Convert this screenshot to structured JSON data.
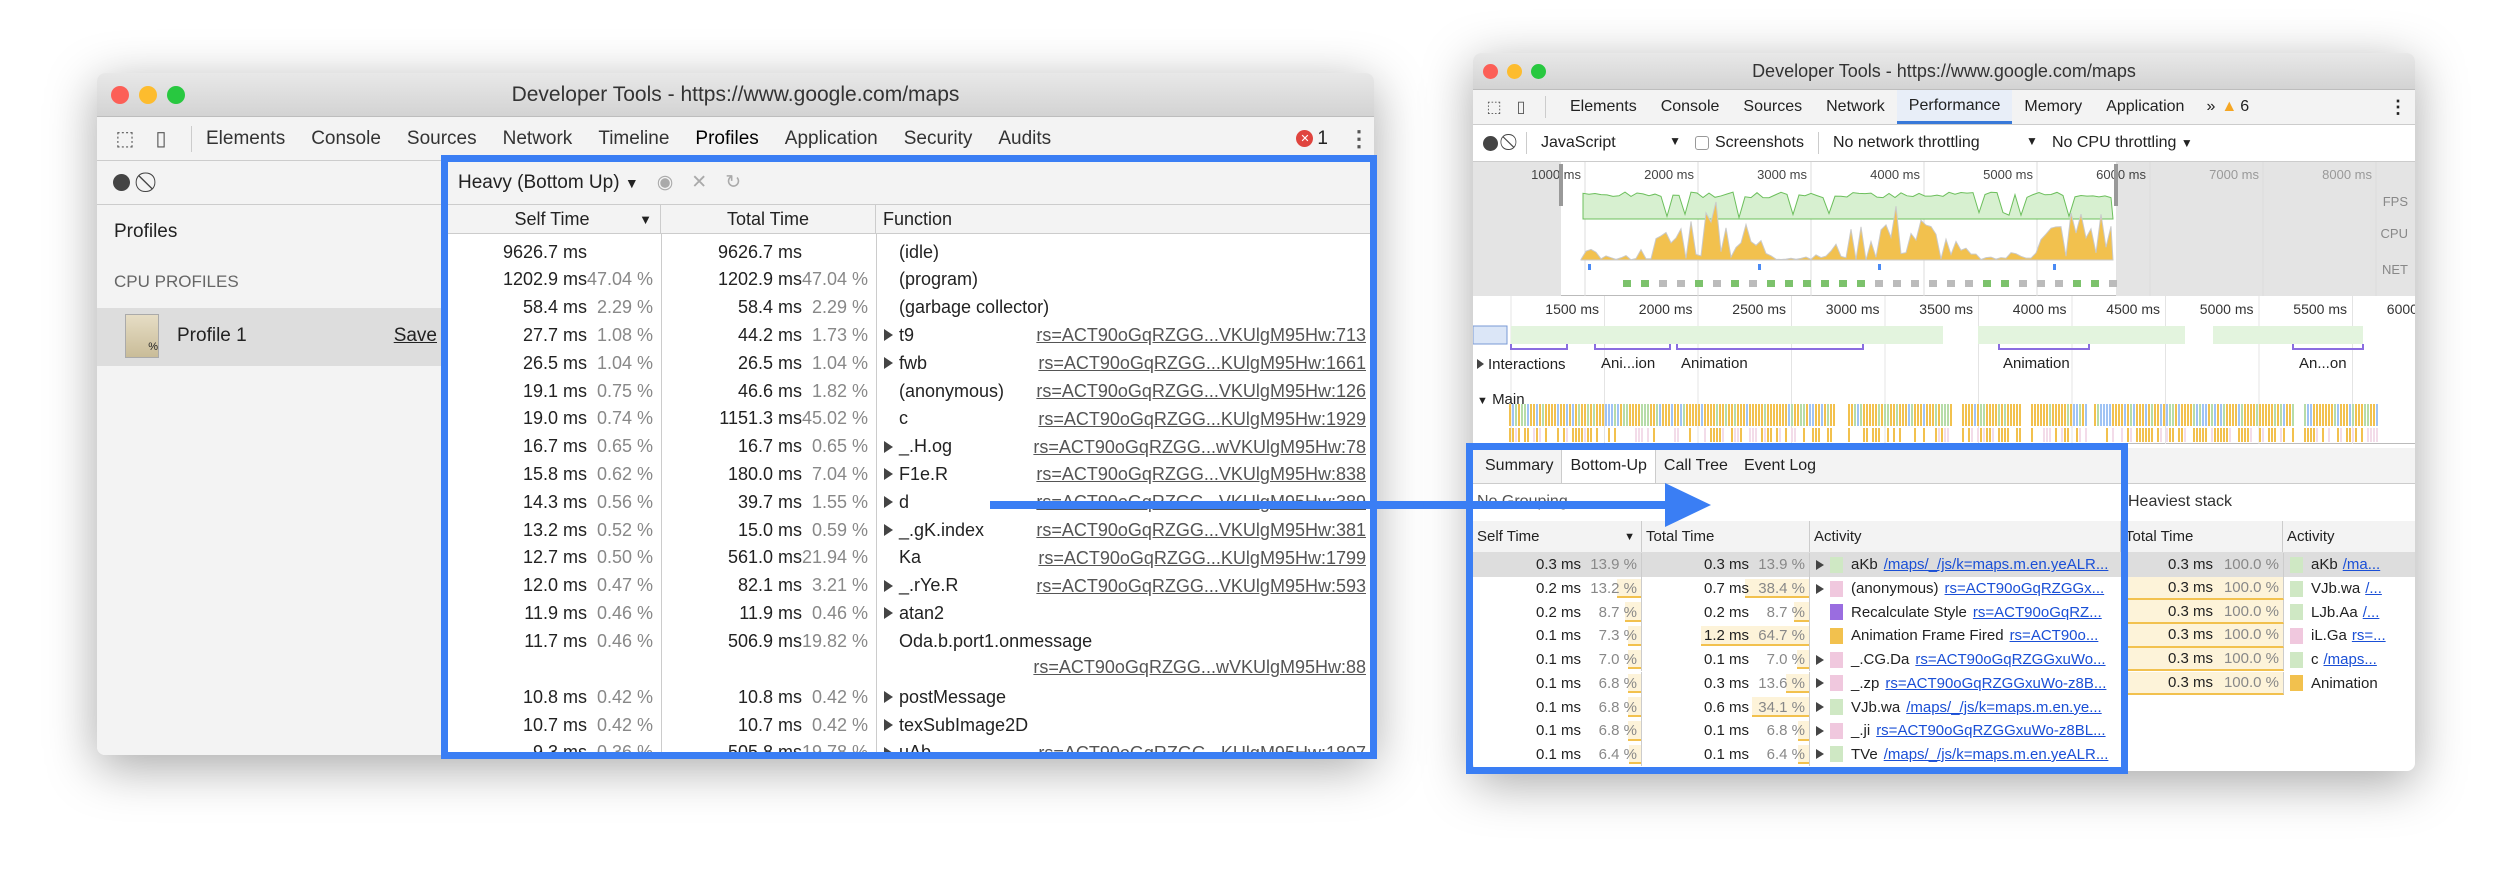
{
  "left_window": {
    "title": "Developer Tools - https://www.google.com/maps",
    "tabs": [
      "Elements",
      "Console",
      "Sources",
      "Network",
      "Timeline",
      "Profiles",
      "Application",
      "Security",
      "Audits"
    ],
    "active_tab": "Profiles",
    "error_count": "1",
    "sidebar": {
      "profiles_label": "Profiles",
      "section_label": "CPU PROFILES",
      "profile_name": "Profile 1",
      "save_label": "Save"
    },
    "view_select": "Heavy (Bottom Up)",
    "columns": {
      "self": "Self Time",
      "total": "Total Time",
      "function": "Function"
    },
    "rows": [
      [
        "9626.7 ms",
        "",
        "9626.7 ms",
        "",
        false,
        "(idle)",
        ""
      ],
      [
        "1202.9 ms",
        "47.04 %",
        "1202.9 ms",
        "47.04 %",
        false,
        "(program)",
        ""
      ],
      [
        "58.4 ms",
        "2.29 %",
        "58.4 ms",
        "2.29 %",
        false,
        "(garbage collector)",
        ""
      ],
      [
        "27.7 ms",
        "1.08 %",
        "44.2 ms",
        "1.73 %",
        true,
        "t9",
        "rs=ACT90oGqRZGG...VKUlgM95Hw:713"
      ],
      [
        "26.5 ms",
        "1.04 %",
        "26.5 ms",
        "1.04 %",
        true,
        "fwb",
        "rs=ACT90oGqRZGG...KUlgM95Hw:1661"
      ],
      [
        "19.1 ms",
        "0.75 %",
        "46.6 ms",
        "1.82 %",
        false,
        "(anonymous)",
        "rs=ACT90oGqRZGG...VKUlgM95Hw:126"
      ],
      [
        "19.0 ms",
        "0.74 %",
        "1151.3 ms",
        "45.02 %",
        false,
        "c",
        "rs=ACT90oGqRZGG...KUlgM95Hw:1929"
      ],
      [
        "16.7 ms",
        "0.65 %",
        "16.7 ms",
        "0.65 %",
        true,
        "_.H.og",
        "rs=ACT90oGqRZGG...wVKUlgM95Hw:78"
      ],
      [
        "15.8 ms",
        "0.62 %",
        "180.0 ms",
        "7.04 %",
        true,
        "F1e.R",
        "rs=ACT90oGqRZGG...VKUlgM95Hw:838"
      ],
      [
        "14.3 ms",
        "0.56 %",
        "39.7 ms",
        "1.55 %",
        true,
        "d",
        "rs=ACT90oGqRZGG...VKUlgM95Hw:389"
      ],
      [
        "13.2 ms",
        "0.52 %",
        "15.0 ms",
        "0.59 %",
        true,
        "_.gK.index",
        "rs=ACT90oGqRZGG...VKUlgM95Hw:381"
      ],
      [
        "12.7 ms",
        "0.50 %",
        "561.0 ms",
        "21.94 %",
        false,
        "Ka",
        "rs=ACT90oGqRZGG...KUlgM95Hw:1799"
      ],
      [
        "12.0 ms",
        "0.47 %",
        "82.1 ms",
        "3.21 %",
        true,
        "_.rYe.R",
        "rs=ACT90oGqRZGG...VKUlgM95Hw:593"
      ],
      [
        "11.9 ms",
        "0.46 %",
        "11.9 ms",
        "0.46 %",
        true,
        "atan2",
        ""
      ],
      [
        "11.7 ms",
        "0.46 %",
        "506.9 ms",
        "19.82 %",
        false,
        "Oda.b.port1.onmessage",
        "rs=ACT90oGqRZGG...wVKUlgM95Hw:88"
      ],
      [
        "10.8 ms",
        "0.42 %",
        "10.8 ms",
        "0.42 %",
        true,
        "postMessage",
        ""
      ],
      [
        "10.7 ms",
        "0.42 %",
        "10.7 ms",
        "0.42 %",
        true,
        "texSubImage2D",
        ""
      ],
      [
        "9.3 ms",
        "0.36 %",
        "505.8 ms",
        "19.78 %",
        true,
        "uAb",
        "rs=ACT90oGqRZGG...KUlgM95Hw:1807"
      ]
    ]
  },
  "right_window": {
    "title": "Developer Tools - https://www.google.com/maps",
    "tabs": [
      "Elements",
      "Console",
      "Sources",
      "Network",
      "Performance",
      "Memory",
      "Application"
    ],
    "active_tab": "Performance",
    "more_tabs": "»",
    "warning_count": "6",
    "toolbar": {
      "category": "JavaScript",
      "screenshots_label": "Screenshots",
      "network": "No network throttling",
      "cpu": "No CPU throttling"
    },
    "overview_ticks": [
      "1000 ms",
      "2000 ms",
      "3000 ms",
      "4000 ms",
      "5000 ms",
      "6000 ms",
      "7000 ms",
      "8000 ms"
    ],
    "track_labels": [
      "FPS",
      "CPU",
      "NET"
    ],
    "detail_ticks": [
      "1500 ms",
      "2000 ms",
      "2500 ms",
      "3000 ms",
      "3500 ms",
      "4000 ms",
      "4500 ms",
      "5000 ms",
      "5500 ms",
      "6000 ms"
    ],
    "interactions_label": "Interactions",
    "interaction_labels": [
      "Ani...ion",
      "Animation",
      "Animation",
      "An...on"
    ],
    "main_label": "Main",
    "bottom_tabs": [
      "Summary",
      "Bottom-Up",
      "Call Tree",
      "Event Log"
    ],
    "active_bottom_tab": "Bottom-Up",
    "grouping": "No Grouping",
    "heaviest_label": "Heaviest stack",
    "columns": {
      "self": "Self Time",
      "total": "Total Time",
      "activity": "Activity"
    },
    "rows": [
      [
        "0.3 ms",
        "13.9 %",
        "0.3 ms",
        "13.9 %",
        true,
        "#cfe8c4",
        "aKb",
        "/maps/_/js/k=maps.m.en.yeALR..."
      ],
      [
        "0.2 ms",
        "13.2 %",
        "0.7 ms",
        "38.4 %",
        true,
        "#f0c8de",
        "(anonymous)",
        "rs=ACT90oGqRZGGx..."
      ],
      [
        "0.2 ms",
        "8.7 %",
        "0.2 ms",
        "8.7 %",
        false,
        "#9a6de0",
        "Recalculate Style",
        "rs=ACT90oGqRZ..."
      ],
      [
        "0.1 ms",
        "7.3 %",
        "1.2 ms",
        "64.7 %",
        false,
        "#f2c14e",
        "Animation Frame Fired",
        "rs=ACT90o..."
      ],
      [
        "0.1 ms",
        "7.0 %",
        "0.1 ms",
        "7.0 %",
        true,
        "#f0c8de",
        "_.CG.Da",
        "rs=ACT90oGqRZGGxuWo..."
      ],
      [
        "0.1 ms",
        "6.8 %",
        "0.3 ms",
        "13.6 %",
        true,
        "#f0c8de",
        "_.zp",
        "rs=ACT90oGqRZGGxuWo-z8B..."
      ],
      [
        "0.1 ms",
        "6.8 %",
        "0.6 ms",
        "34.1 %",
        true,
        "#cfe8c4",
        "VJb.wa",
        "/maps/_/js/k=maps.m.en.ye..."
      ],
      [
        "0.1 ms",
        "6.8 %",
        "0.1 ms",
        "6.8 %",
        true,
        "#f0c8de",
        "_.ji",
        "rs=ACT90oGqRZGGxuWo-z8BL..."
      ],
      [
        "0.1 ms",
        "6.4 %",
        "0.1 ms",
        "6.4 %",
        true,
        "#cfe8c4",
        "TVe",
        "/maps/_/js/k=maps.m.en.yeALR..."
      ]
    ],
    "heaviest_rows": [
      [
        "0.3 ms",
        "100.0 %",
        "#cfe8c4",
        "aKb",
        "/ma..."
      ],
      [
        "0.3 ms",
        "100.0 %",
        "#cfe8c4",
        "VJb.wa",
        "/..."
      ],
      [
        "0.3 ms",
        "100.0 %",
        "#cfe8c4",
        "LJb.Aa",
        "/..."
      ],
      [
        "0.3 ms",
        "100.0 %",
        "#f0c8de",
        "iL.Ga",
        "rs=..."
      ],
      [
        "0.3 ms",
        "100.0 %",
        "#cfe8c4",
        "c",
        "/maps..."
      ],
      [
        "0.3 ms",
        "100.0 %",
        "#f2c14e",
        "Animation",
        ""
      ]
    ]
  },
  "colors": {
    "highlight": "#3a7ef4",
    "accent_tab": "#3879d9",
    "error": "#e0443e",
    "warning": "#f5a623"
  }
}
